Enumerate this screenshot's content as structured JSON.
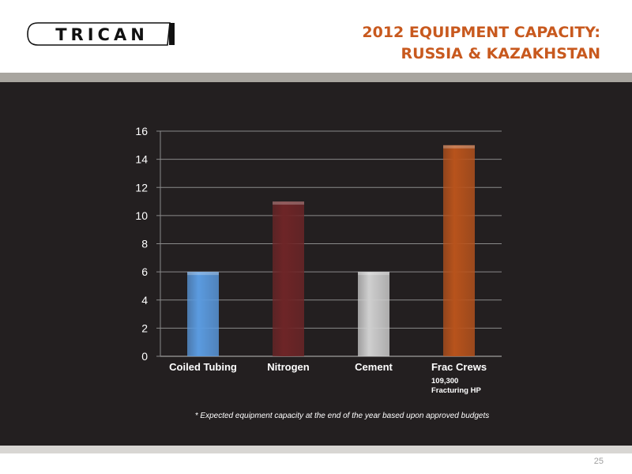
{
  "header": {
    "logo_text": "TRICAN",
    "title_line1": "2012 EQUIPMENT CAPACITY:",
    "title_line2": "RUSSIA & KAZAKHSTAN"
  },
  "chart_data": {
    "type": "bar",
    "categories": [
      "Coiled Tubing",
      "Nitrogen",
      "Cement",
      "Frac Crews"
    ],
    "values": [
      6,
      11,
      6,
      15
    ],
    "colors": [
      "#5b9be0",
      "#6e2527",
      "#cfcfcf",
      "#b8531c"
    ],
    "ylim": [
      0,
      16
    ],
    "yticks": [
      0,
      2,
      4,
      6,
      8,
      10,
      12,
      14,
      16
    ],
    "grid": true,
    "annotation_line1": "109,300",
    "annotation_line2": "Fracturing HP"
  },
  "footnote": "* Expected equipment capacity at the end of the year based upon approved budgets",
  "page_number": "25"
}
